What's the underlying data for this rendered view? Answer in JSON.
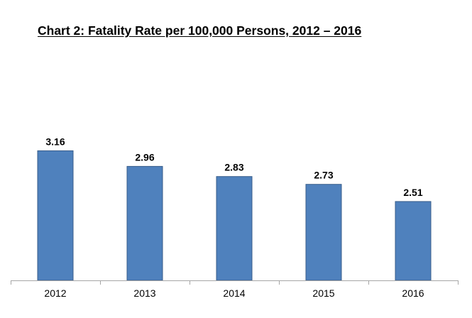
{
  "chart_data": {
    "type": "bar",
    "title": "Chart 2: Fatality Rate per 100,000 Persons, 2012 – 2016",
    "categories": [
      "2012",
      "2013",
      "2014",
      "2015",
      "2016"
    ],
    "values": [
      3.16,
      2.96,
      2.83,
      2.73,
      2.51
    ],
    "value_labels": [
      "3.16",
      "2.96",
      "2.83",
      "2.73",
      "2.51"
    ],
    "xlabel": "",
    "ylabel": "",
    "ylim": [
      1.5,
      3.8
    ],
    "y_axis_visible": false,
    "grid": false,
    "legend": "none",
    "bar_color": "#4F81BD",
    "bar_edge_color": "#385D8A",
    "axis_color": "#A6A6A6"
  }
}
